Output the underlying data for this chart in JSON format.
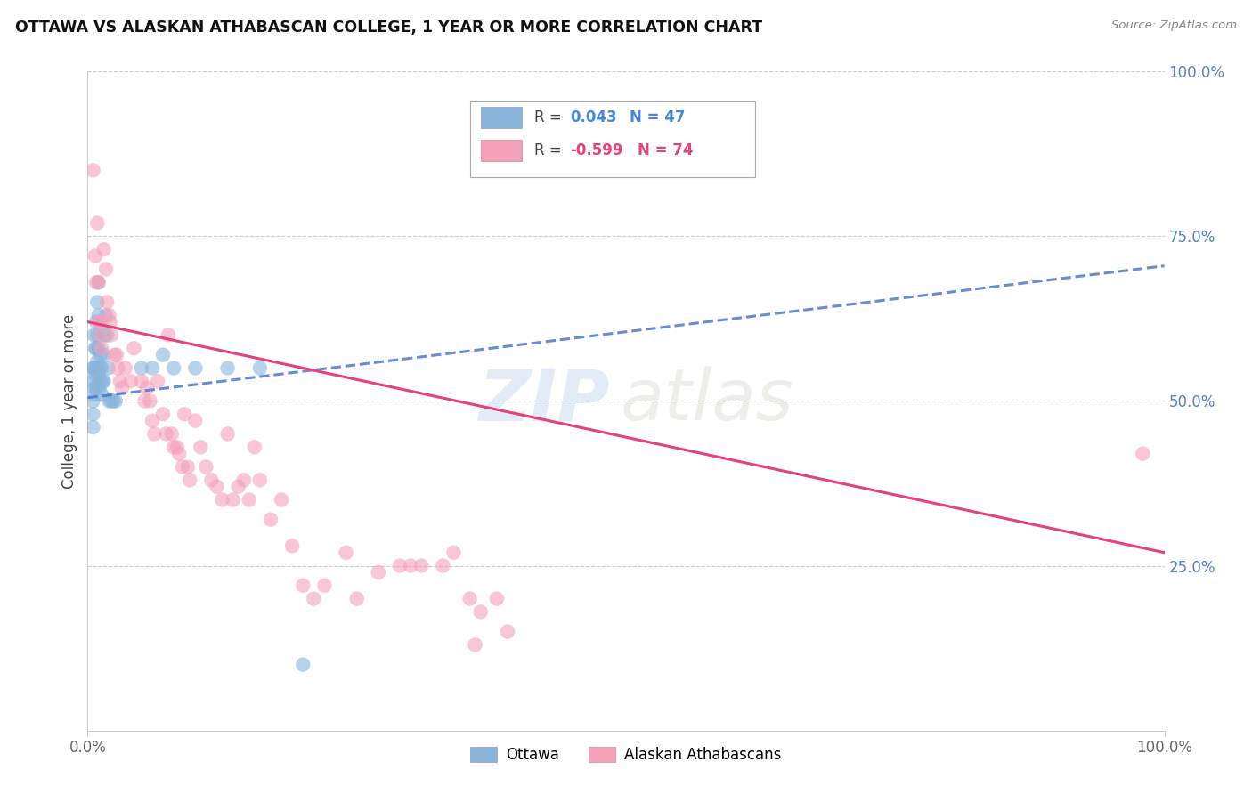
{
  "title": "OTTAWA VS ALASKAN ATHABASCAN COLLEGE, 1 YEAR OR MORE CORRELATION CHART",
  "source": "Source: ZipAtlas.com",
  "ylabel": "College, 1 year or more",
  "right_yticks": [
    "100.0%",
    "75.0%",
    "50.0%",
    "25.0%"
  ],
  "right_ytick_vals": [
    1.0,
    0.75,
    0.5,
    0.25
  ],
  "ottawa_color": "#88B4DC",
  "alaskan_color": "#F4A0B8",
  "ottawa_line_color": "#4070C8",
  "alaskan_line_color": "#E8407A",
  "watermark_zip": "ZIP",
  "watermark_atlas": "atlas",
  "blue_scatter_x": [
    0.005,
    0.005,
    0.005,
    0.005,
    0.005,
    0.006,
    0.006,
    0.006,
    0.007,
    0.007,
    0.007,
    0.008,
    0.008,
    0.008,
    0.008,
    0.009,
    0.009,
    0.009,
    0.01,
    0.01,
    0.01,
    0.01,
    0.011,
    0.011,
    0.012,
    0.012,
    0.013,
    0.013,
    0.014,
    0.015,
    0.015,
    0.016,
    0.017,
    0.018,
    0.019,
    0.02,
    0.022,
    0.024,
    0.026,
    0.05,
    0.06,
    0.07,
    0.08,
    0.1,
    0.13,
    0.16,
    0.2
  ],
  "blue_scatter_y": [
    0.55,
    0.53,
    0.5,
    0.48,
    0.46,
    0.6,
    0.55,
    0.52,
    0.58,
    0.54,
    0.51,
    0.62,
    0.58,
    0.55,
    0.52,
    0.65,
    0.6,
    0.56,
    0.68,
    0.63,
    0.58,
    0.54,
    0.55,
    0.52,
    0.57,
    0.53,
    0.55,
    0.51,
    0.53,
    0.57,
    0.53,
    0.6,
    0.63,
    0.6,
    0.55,
    0.5,
    0.5,
    0.5,
    0.5,
    0.55,
    0.55,
    0.57,
    0.55,
    0.55,
    0.55,
    0.55,
    0.1
  ],
  "pink_scatter_x": [
    0.005,
    0.007,
    0.008,
    0.009,
    0.01,
    0.011,
    0.012,
    0.012,
    0.013,
    0.015,
    0.017,
    0.018,
    0.02,
    0.021,
    0.022,
    0.025,
    0.027,
    0.028,
    0.03,
    0.032,
    0.035,
    0.04,
    0.043,
    0.05,
    0.053,
    0.055,
    0.058,
    0.06,
    0.062,
    0.065,
    0.07,
    0.073,
    0.075,
    0.078,
    0.08,
    0.083,
    0.085,
    0.088,
    0.09,
    0.093,
    0.095,
    0.1,
    0.105,
    0.11,
    0.115,
    0.12,
    0.125,
    0.13,
    0.135,
    0.14,
    0.145,
    0.15,
    0.155,
    0.16,
    0.17,
    0.18,
    0.19,
    0.2,
    0.21,
    0.22,
    0.24,
    0.25,
    0.27,
    0.29,
    0.3,
    0.31,
    0.33,
    0.34,
    0.355,
    0.36,
    0.365,
    0.38,
    0.39,
    0.98
  ],
  "pink_scatter_y": [
    0.85,
    0.72,
    0.68,
    0.77,
    0.68,
    0.62,
    0.6,
    0.62,
    0.58,
    0.73,
    0.7,
    0.65,
    0.63,
    0.62,
    0.6,
    0.57,
    0.57,
    0.55,
    0.53,
    0.52,
    0.55,
    0.53,
    0.58,
    0.53,
    0.5,
    0.52,
    0.5,
    0.47,
    0.45,
    0.53,
    0.48,
    0.45,
    0.6,
    0.45,
    0.43,
    0.43,
    0.42,
    0.4,
    0.48,
    0.4,
    0.38,
    0.47,
    0.43,
    0.4,
    0.38,
    0.37,
    0.35,
    0.45,
    0.35,
    0.37,
    0.38,
    0.35,
    0.43,
    0.38,
    0.32,
    0.35,
    0.28,
    0.22,
    0.2,
    0.22,
    0.27,
    0.2,
    0.24,
    0.25,
    0.25,
    0.25,
    0.25,
    0.27,
    0.2,
    0.13,
    0.18,
    0.2,
    0.15,
    0.42
  ]
}
